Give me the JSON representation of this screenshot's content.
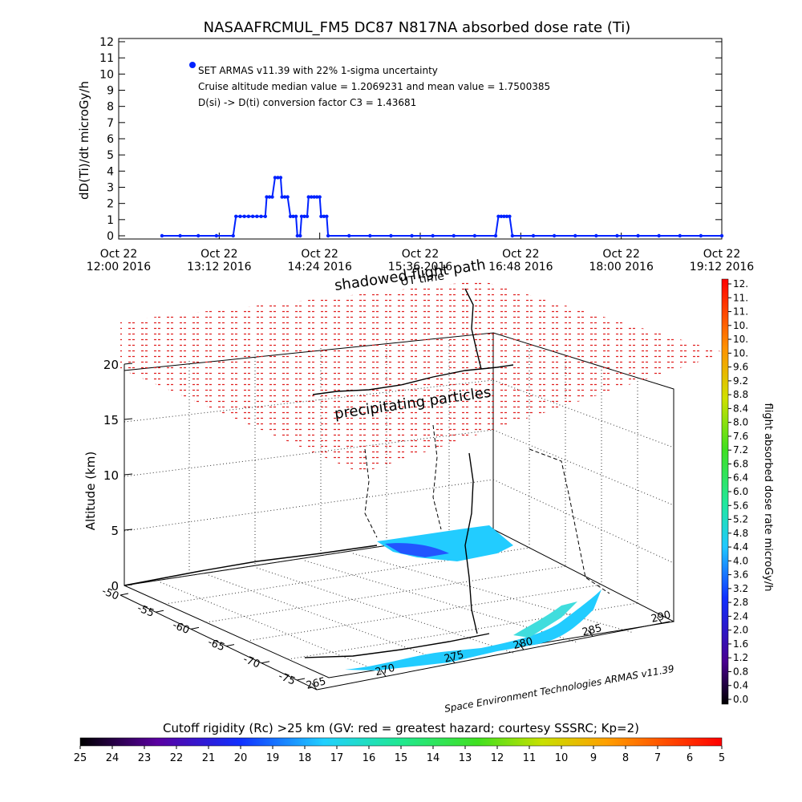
{
  "title": "NASAAFRCMUL_FM5 DC87 N817NA absorbed dose rate (Ti)",
  "chart_data": [
    {
      "type": "scatter",
      "ylabel": "dD(Ti)/dt microGy/h",
      "ylim": [
        0,
        12
      ],
      "yticks": [
        "0",
        "1",
        "2",
        "3",
        "4",
        "5",
        "6",
        "7",
        "8",
        "9",
        "10",
        "11",
        "12"
      ],
      "xlim_minutes": [
        0,
        432
      ],
      "xticks": [
        {
          "top": "Oct 22",
          "bottom": "12:00 2016",
          "m": 0
        },
        {
          "top": "Oct 22",
          "bottom": "13:12 2016",
          "m": 72
        },
        {
          "top": "Oct 22",
          "bottom": "14:24 2016",
          "m": 144
        },
        {
          "top": "Oct 22",
          "bottom": "15:36 2016",
          "m": 216
        },
        {
          "top": "Oct 22",
          "bottom": "16:48 2016",
          "m": 288
        },
        {
          "top": "Oct 22",
          "bottom": "18:00 2016",
          "m": 360
        },
        {
          "top": "Oct 22",
          "bottom": "19:12 2016",
          "m": 432
        }
      ],
      "annotations": [
        "SET ARMAS v11.39 with 22% 1-sigma uncertainty",
        "Cruise altitude median value = 1.2069231 and mean value = 1.7500385",
        "D(si) -> D(ti) conversion factor C3 = 1.43681"
      ],
      "series": [
        {
          "color": "#0022ff",
          "points": [
            [
              31,
              0
            ],
            [
              44,
              0
            ],
            [
              57,
              0
            ],
            [
              70,
              0
            ],
            [
              82,
              0
            ],
            [
              84,
              1.2
            ],
            [
              87,
              1.2
            ],
            [
              90,
              1.2
            ],
            [
              93,
              1.2
            ],
            [
              96,
              1.2
            ],
            [
              99,
              1.2
            ],
            [
              102,
              1.2
            ],
            [
              105,
              1.2
            ],
            [
              106,
              2.4
            ],
            [
              108,
              2.4
            ],
            [
              110,
              2.4
            ],
            [
              112,
              3.6
            ],
            [
              114,
              3.6
            ],
            [
              116,
              3.6
            ],
            [
              117,
              2.4
            ],
            [
              119,
              2.4
            ],
            [
              121,
              2.4
            ],
            [
              123,
              1.2
            ],
            [
              125,
              1.2
            ],
            [
              127,
              1.2
            ],
            [
              128,
              0
            ],
            [
              130,
              0
            ],
            [
              131,
              1.2
            ],
            [
              133,
              1.2
            ],
            [
              135,
              1.2
            ],
            [
              136,
              2.4
            ],
            [
              138,
              2.4
            ],
            [
              140,
              2.4
            ],
            [
              142,
              2.4
            ],
            [
              144,
              2.4
            ],
            [
              145,
              1.2
            ],
            [
              147,
              1.2
            ],
            [
              149,
              1.2
            ],
            [
              150,
              0
            ],
            [
              165,
              0
            ],
            [
              180,
              0
            ],
            [
              195,
              0
            ],
            [
              210,
              0
            ],
            [
              225,
              0
            ],
            [
              240,
              0
            ],
            [
              255,
              0
            ],
            [
              270,
              0
            ],
            [
              272,
              1.2
            ],
            [
              274,
              1.2
            ],
            [
              276,
              1.2
            ],
            [
              278,
              1.2
            ],
            [
              280,
              1.2
            ],
            [
              282,
              0
            ],
            [
              297,
              0
            ],
            [
              312,
              0
            ],
            [
              327,
              0
            ],
            [
              342,
              0
            ],
            [
              357,
              0
            ],
            [
              372,
              0
            ],
            [
              387,
              0
            ],
            [
              402,
              0
            ],
            [
              417,
              0
            ],
            [
              432,
              0
            ]
          ]
        }
      ]
    },
    {
      "type": "scatter",
      "zlabel": "Altitude (km)",
      "zticks": [
        "0",
        "5",
        "10",
        "15",
        "20"
      ],
      "zlim": [
        0,
        20
      ],
      "lat_ticks": [
        "-50",
        "-55",
        "-60",
        "-65",
        "-70",
        "-75"
      ],
      "lon_ticks": [
        "265",
        "270",
        "275",
        "280",
        "285",
        "290"
      ],
      "labels": [
        "shadowed flight path",
        "UT time",
        "precipitating particles"
      ],
      "credit": "Space Environment Technologies ARMAS v11.39",
      "colorbar_right": {
        "label": "flight absorbed dose rate microGy/h",
        "ticks": [
          "12.",
          "11.",
          "11.",
          "10.",
          "10.",
          "10.",
          "9.6",
          "9.2",
          "8.8",
          "8.4",
          "8.0",
          "7.6",
          "7.2",
          "6.8",
          "6.4",
          "6.0",
          "5.6",
          "5.2",
          "4.8",
          "4.4",
          "4.0",
          "3.6",
          "3.2",
          "2.8",
          "2.4",
          "2.0",
          "1.6",
          "1.2",
          "0.8",
          "0.4",
          "0.0"
        ]
      },
      "colorbar_bottom": {
        "label": "Cutoff rigidity (Rc) >25 km (GV: red = greatest hazard; courtesy SSSRC; Kp=2)",
        "ticks": [
          "25",
          "24",
          "23",
          "22",
          "21",
          "20",
          "19",
          "18",
          "17",
          "16",
          "15",
          "14",
          "13",
          "12",
          "11",
          "10",
          "9",
          "8",
          "7",
          "6",
          "5"
        ]
      }
    }
  ]
}
